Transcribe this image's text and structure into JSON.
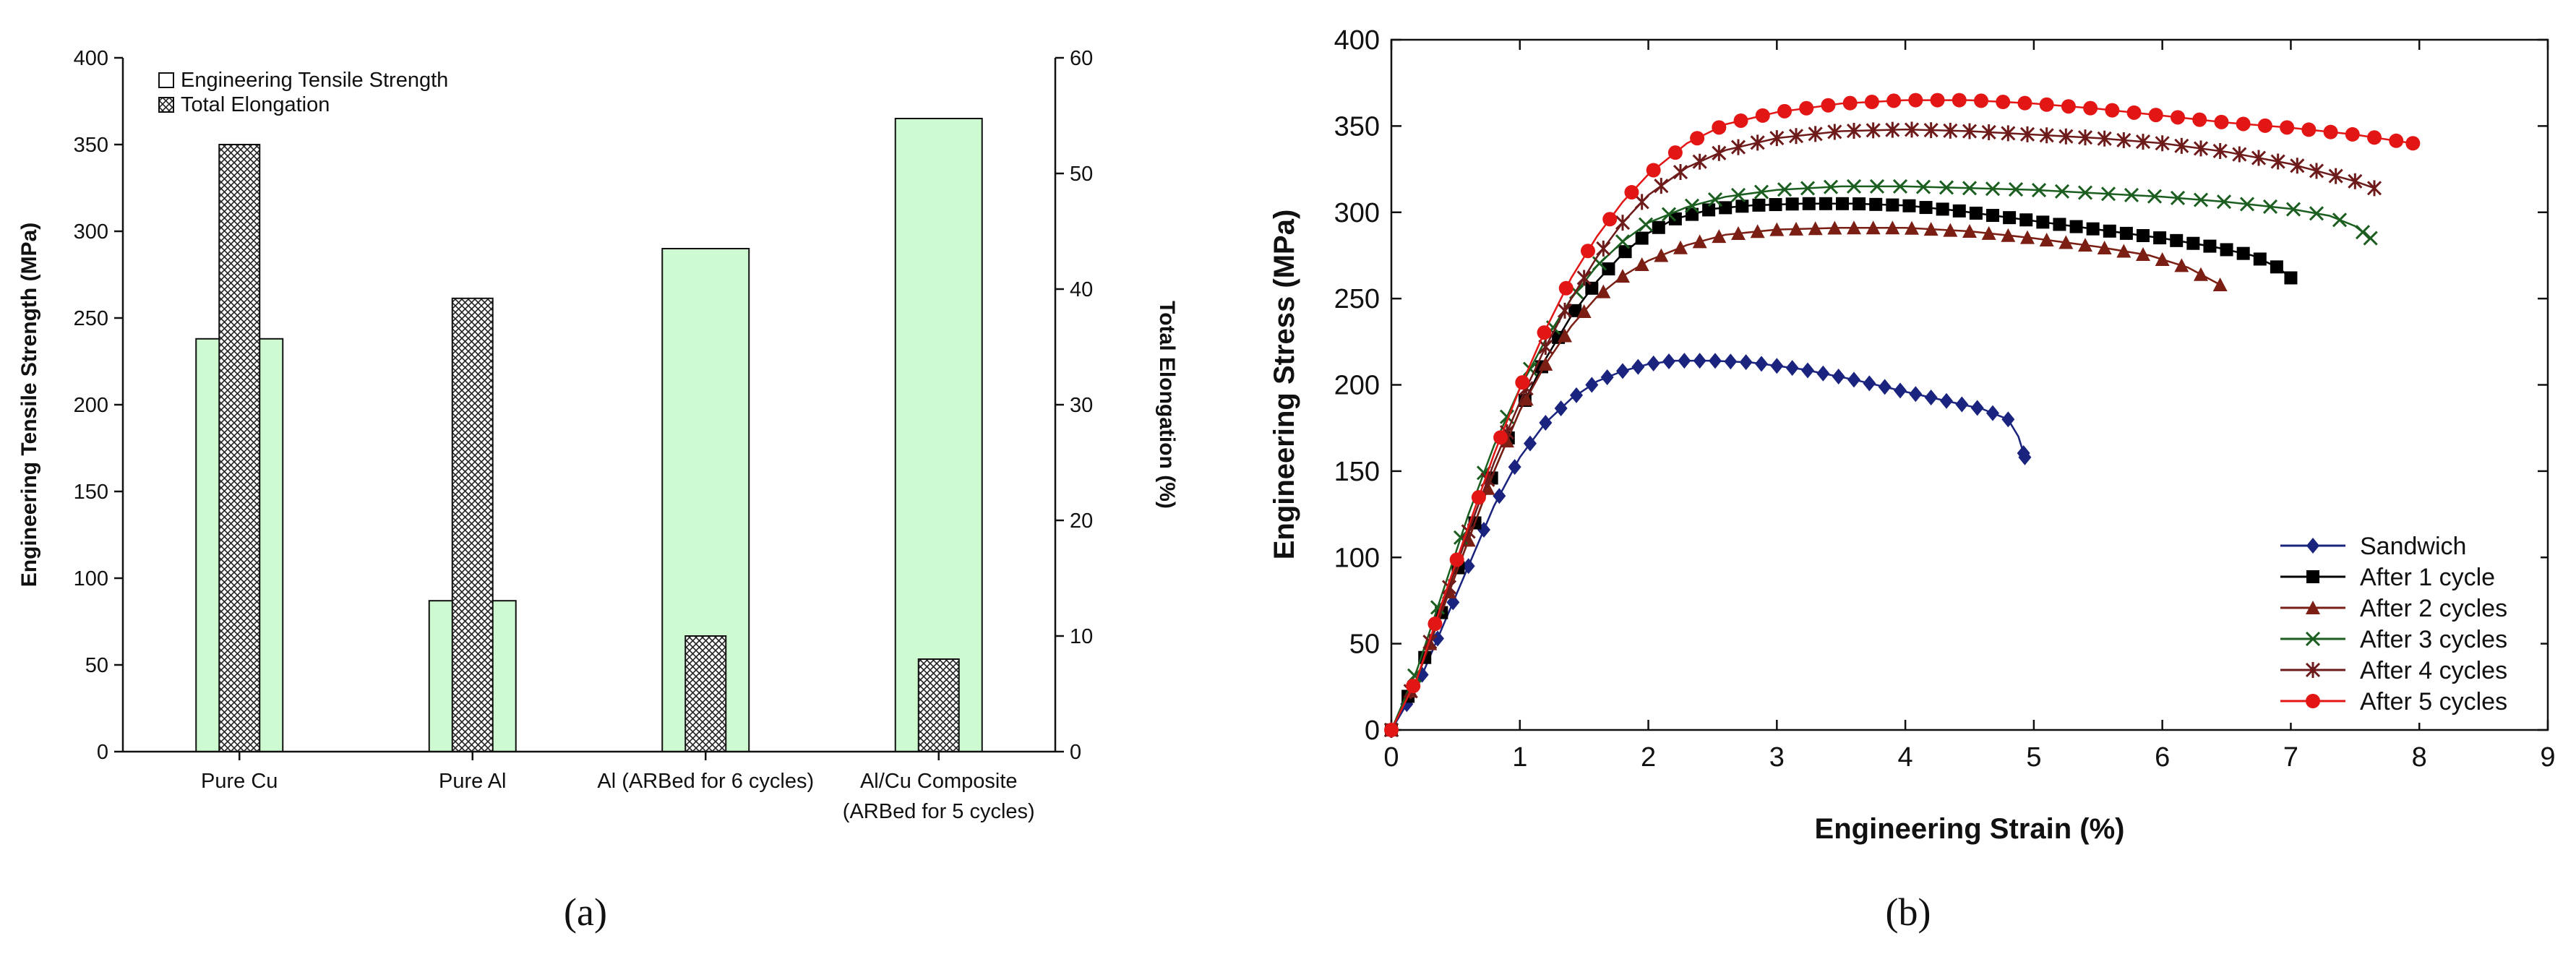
{
  "chart_data": [
    {
      "panel": "(a)",
      "type": "bar",
      "title": "",
      "xlabel": "",
      "ylabel": "Engineering Tensile Strength (MPa)",
      "y2label": "Total Elongation (%)",
      "ylim": [
        0,
        400
      ],
      "y2lim": [
        0,
        60
      ],
      "yticks": [
        0,
        50,
        100,
        150,
        200,
        250,
        300,
        350,
        400
      ],
      "y2ticks": [
        0,
        10,
        20,
        30,
        40,
        50,
        60
      ],
      "categories": [
        {
          "line1": "Pure Cu",
          "line2": ""
        },
        {
          "line1": "Pure Al",
          "line2": ""
        },
        {
          "line1": "Al (ARBed for 6 cycles)",
          "line2": ""
        },
        {
          "line1": "Al/Cu Composite",
          "line2": "(ARBed for 5 cycles)"
        }
      ],
      "series": [
        {
          "name": "Engineering Tensile Strength",
          "axis": "left",
          "values": [
            238,
            87,
            290,
            365
          ],
          "color": "#cdfad0"
        },
        {
          "name": "Total Elongation",
          "axis": "right",
          "values": [
            52.5,
            39.2,
            10,
            8
          ],
          "pattern": "crosshatch"
        }
      ],
      "legend": "top-left"
    },
    {
      "panel": "(b)",
      "type": "line",
      "title": "",
      "xlabel": "Engineering Strain (%)",
      "ylabel": "Engineering Stress (MPa)",
      "xlim": [
        0,
        9
      ],
      "ylim": [
        0,
        400
      ],
      "xticks": [
        0,
        1,
        2,
        3,
        4,
        5,
        6,
        7,
        8,
        9
      ],
      "yticks": [
        0,
        50,
        100,
        150,
        200,
        250,
        300,
        350,
        400
      ],
      "legend": "bottom-right",
      "series": [
        {
          "name": "Sandwich",
          "color": "#1a237e",
          "marker": "diamond",
          "step": 0.12,
          "curve": [
            [
              0,
              0
            ],
            [
              0.2,
              25
            ],
            [
              0.4,
              60
            ],
            [
              0.6,
              95
            ],
            [
              0.8,
              130
            ],
            [
              1.0,
              158
            ],
            [
              1.2,
              178
            ],
            [
              1.4,
              192
            ],
            [
              1.6,
              202
            ],
            [
              1.8,
              208
            ],
            [
              2.0,
              212
            ],
            [
              2.2,
              214
            ],
            [
              2.5,
              214
            ],
            [
              2.8,
              213
            ],
            [
              3.2,
              209
            ],
            [
              3.6,
              203
            ],
            [
              4.0,
              196
            ],
            [
              4.3,
              191
            ],
            [
              4.6,
              186
            ],
            [
              4.8,
              180
            ],
            [
              4.88,
              170
            ],
            [
              4.93,
              158
            ]
          ]
        },
        {
          "name": "After 1 cycle",
          "color": "#000000",
          "marker": "square",
          "step": 0.13,
          "curve": [
            [
              0,
              0
            ],
            [
              0.2,
              30
            ],
            [
              0.4,
              70
            ],
            [
              0.6,
              110
            ],
            [
              0.8,
              150
            ],
            [
              1.0,
              185
            ],
            [
              1.2,
              215
            ],
            [
              1.4,
              240
            ],
            [
              1.6,
              260
            ],
            [
              1.8,
              276
            ],
            [
              2.0,
              288
            ],
            [
              2.2,
              296
            ],
            [
              2.5,
              302
            ],
            [
              2.8,
              304
            ],
            [
              3.2,
              305
            ],
            [
              3.6,
              305
            ],
            [
              4.0,
              304
            ],
            [
              4.4,
              301
            ],
            [
              4.8,
              297
            ],
            [
              5.2,
              293
            ],
            [
              5.6,
              289
            ],
            [
              6.0,
              285
            ],
            [
              6.4,
              280
            ],
            [
              6.7,
              275
            ],
            [
              6.9,
              268
            ],
            [
              7.0,
              262
            ]
          ]
        },
        {
          "name": "After 2 cycles",
          "color": "#7b1f14",
          "marker": "triangle",
          "step": 0.15,
          "curve": [
            [
              0,
              0
            ],
            [
              0.2,
              30
            ],
            [
              0.4,
              70
            ],
            [
              0.6,
              110
            ],
            [
              0.8,
              150
            ],
            [
              1.0,
              185
            ],
            [
              1.2,
              212
            ],
            [
              1.4,
              234
            ],
            [
              1.6,
              251
            ],
            [
              1.8,
              263
            ],
            [
              2.0,
              272
            ],
            [
              2.3,
              281
            ],
            [
              2.6,
              287
            ],
            [
              3.0,
              290
            ],
            [
              3.5,
              291
            ],
            [
              4.0,
              291
            ],
            [
              4.5,
              289
            ],
            [
              5.0,
              285
            ],
            [
              5.5,
              280
            ],
            [
              5.9,
              275
            ],
            [
              6.2,
              268
            ],
            [
              6.45,
              258
            ]
          ]
        },
        {
          "name": "After 3 cycles",
          "color": "#1b5e20",
          "marker": "x",
          "step": 0.18,
          "curve": [
            [
              0,
              0
            ],
            [
              0.2,
              35
            ],
            [
              0.4,
              80
            ],
            [
              0.6,
              125
            ],
            [
              0.8,
              165
            ],
            [
              1.0,
              198
            ],
            [
              1.2,
              226
            ],
            [
              1.4,
              250
            ],
            [
              1.6,
              269
            ],
            [
              1.8,
              283
            ],
            [
              2.0,
              294
            ],
            [
              2.3,
              303
            ],
            [
              2.6,
              309
            ],
            [
              3.0,
              313
            ],
            [
              3.5,
              315
            ],
            [
              4.0,
              315
            ],
            [
              4.5,
              314
            ],
            [
              5.0,
              313
            ],
            [
              5.5,
              311
            ],
            [
              6.0,
              309
            ],
            [
              6.5,
              306
            ],
            [
              7.0,
              302
            ],
            [
              7.3,
              298
            ],
            [
              7.5,
              292
            ],
            [
              7.62,
              285
            ]
          ]
        },
        {
          "name": "After 4 cycles",
          "color": "#6d1a1a",
          "marker": "star",
          "step": 0.15,
          "curve": [
            [
              0,
              0
            ],
            [
              0.2,
              30
            ],
            [
              0.4,
              72
            ],
            [
              0.6,
              115
            ],
            [
              0.8,
              155
            ],
            [
              1.0,
              190
            ],
            [
              1.2,
              222
            ],
            [
              1.4,
              250
            ],
            [
              1.6,
              274
            ],
            [
              1.8,
              294
            ],
            [
              2.0,
              310
            ],
            [
              2.3,
              326
            ],
            [
              2.6,
              336
            ],
            [
              3.0,
              343
            ],
            [
              3.5,
              347
            ],
            [
              4.0,
              348
            ],
            [
              4.5,
              347
            ],
            [
              5.0,
              345
            ],
            [
              5.5,
              343
            ],
            [
              6.0,
              340
            ],
            [
              6.5,
              335
            ],
            [
              7.0,
              328
            ],
            [
              7.3,
              322
            ],
            [
              7.5,
              318
            ],
            [
              7.65,
              314
            ]
          ]
        },
        {
          "name": "After 5 cycles",
          "color": "#e31616",
          "marker": "circle",
          "step": 0.17,
          "curve": [
            [
              0,
              0
            ],
            [
              0.2,
              30
            ],
            [
              0.4,
              75
            ],
            [
              0.6,
              118
            ],
            [
              0.8,
              160
            ],
            [
              1.0,
              198
            ],
            [
              1.2,
              232
            ],
            [
              1.4,
              262
            ],
            [
              1.6,
              286
            ],
            [
              1.8,
              306
            ],
            [
              2.0,
              322
            ],
            [
              2.3,
              340
            ],
            [
              2.6,
              351
            ],
            [
              3.0,
              358
            ],
            [
              3.5,
              363
            ],
            [
              4.0,
              365
            ],
            [
              4.5,
              365
            ],
            [
              5.0,
              363
            ],
            [
              5.5,
              360
            ],
            [
              6.0,
              356
            ],
            [
              6.5,
              352
            ],
            [
              7.0,
              349
            ],
            [
              7.5,
              345
            ],
            [
              7.95,
              340
            ]
          ]
        }
      ]
    }
  ],
  "captions": {
    "a": "(a)",
    "b": "(b)"
  }
}
